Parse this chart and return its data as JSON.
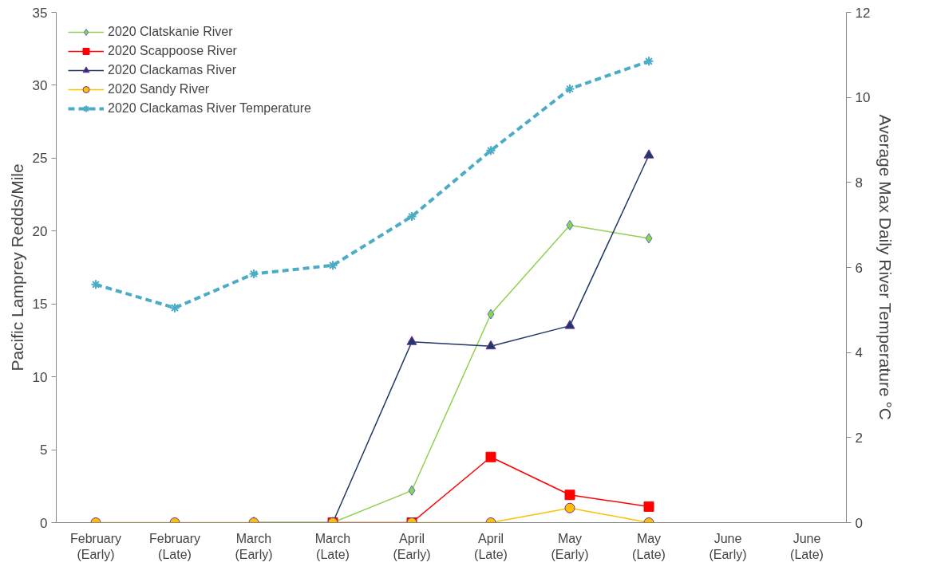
{
  "chart_data": {
    "type": "line",
    "ylabel": "Pacific Lamprey Redds/Mile",
    "y2label": "Average Max Daily River Temperature °C",
    "categories": [
      "February\n(Early)",
      "February\n(Late)",
      "March\n(Early)",
      "March\n(Late)",
      "April\n(Early)",
      "April\n(Late)",
      "May\n(Early)",
      "May\n(Late)",
      "June\n(Early)",
      "June\n(Late)"
    ],
    "ylim": [
      0,
      35
    ],
    "yticks": [
      0,
      5,
      10,
      15,
      20,
      25,
      30,
      35
    ],
    "y2lim": [
      0,
      12
    ],
    "y2ticks": [
      0,
      2,
      4,
      6,
      8,
      10,
      12
    ],
    "grid": false,
    "legend": "top left",
    "series": [
      {
        "name": "2020 Clatskanie River",
        "color": "#92d050",
        "marker": "diamond",
        "line_style": "solid",
        "values": [
          null,
          null,
          0,
          0,
          2.2,
          14.3,
          20.4,
          19.5,
          null,
          null
        ]
      },
      {
        "name": "2020 Scappoose River",
        "color": "#ff0000",
        "marker": "square",
        "line_style": "solid",
        "values": [
          null,
          null,
          null,
          0,
          0,
          4.5,
          1.9,
          1.1,
          null,
          null
        ]
      },
      {
        "name": "2020 Clackamas River",
        "color": "#1f3864",
        "marker": "triangle",
        "line_style": "solid",
        "values": [
          null,
          null,
          0,
          0,
          12.4,
          12.1,
          13.5,
          25.2,
          null,
          null
        ]
      },
      {
        "name": "2020 Sandy River",
        "color": "#ffc000",
        "marker": "circle",
        "line_style": "solid",
        "values": [
          0,
          0,
          0,
          0,
          0,
          0,
          1.0,
          0,
          null,
          null
        ]
      },
      {
        "name": "2020 Clackamas River Temperature",
        "color": "#4bacc6",
        "marker": "cross",
        "line_style": "dashed",
        "axis": "y2",
        "values": [
          5.6,
          5.05,
          5.85,
          6.05,
          7.2,
          8.75,
          10.2,
          10.85,
          null,
          null
        ]
      }
    ]
  }
}
